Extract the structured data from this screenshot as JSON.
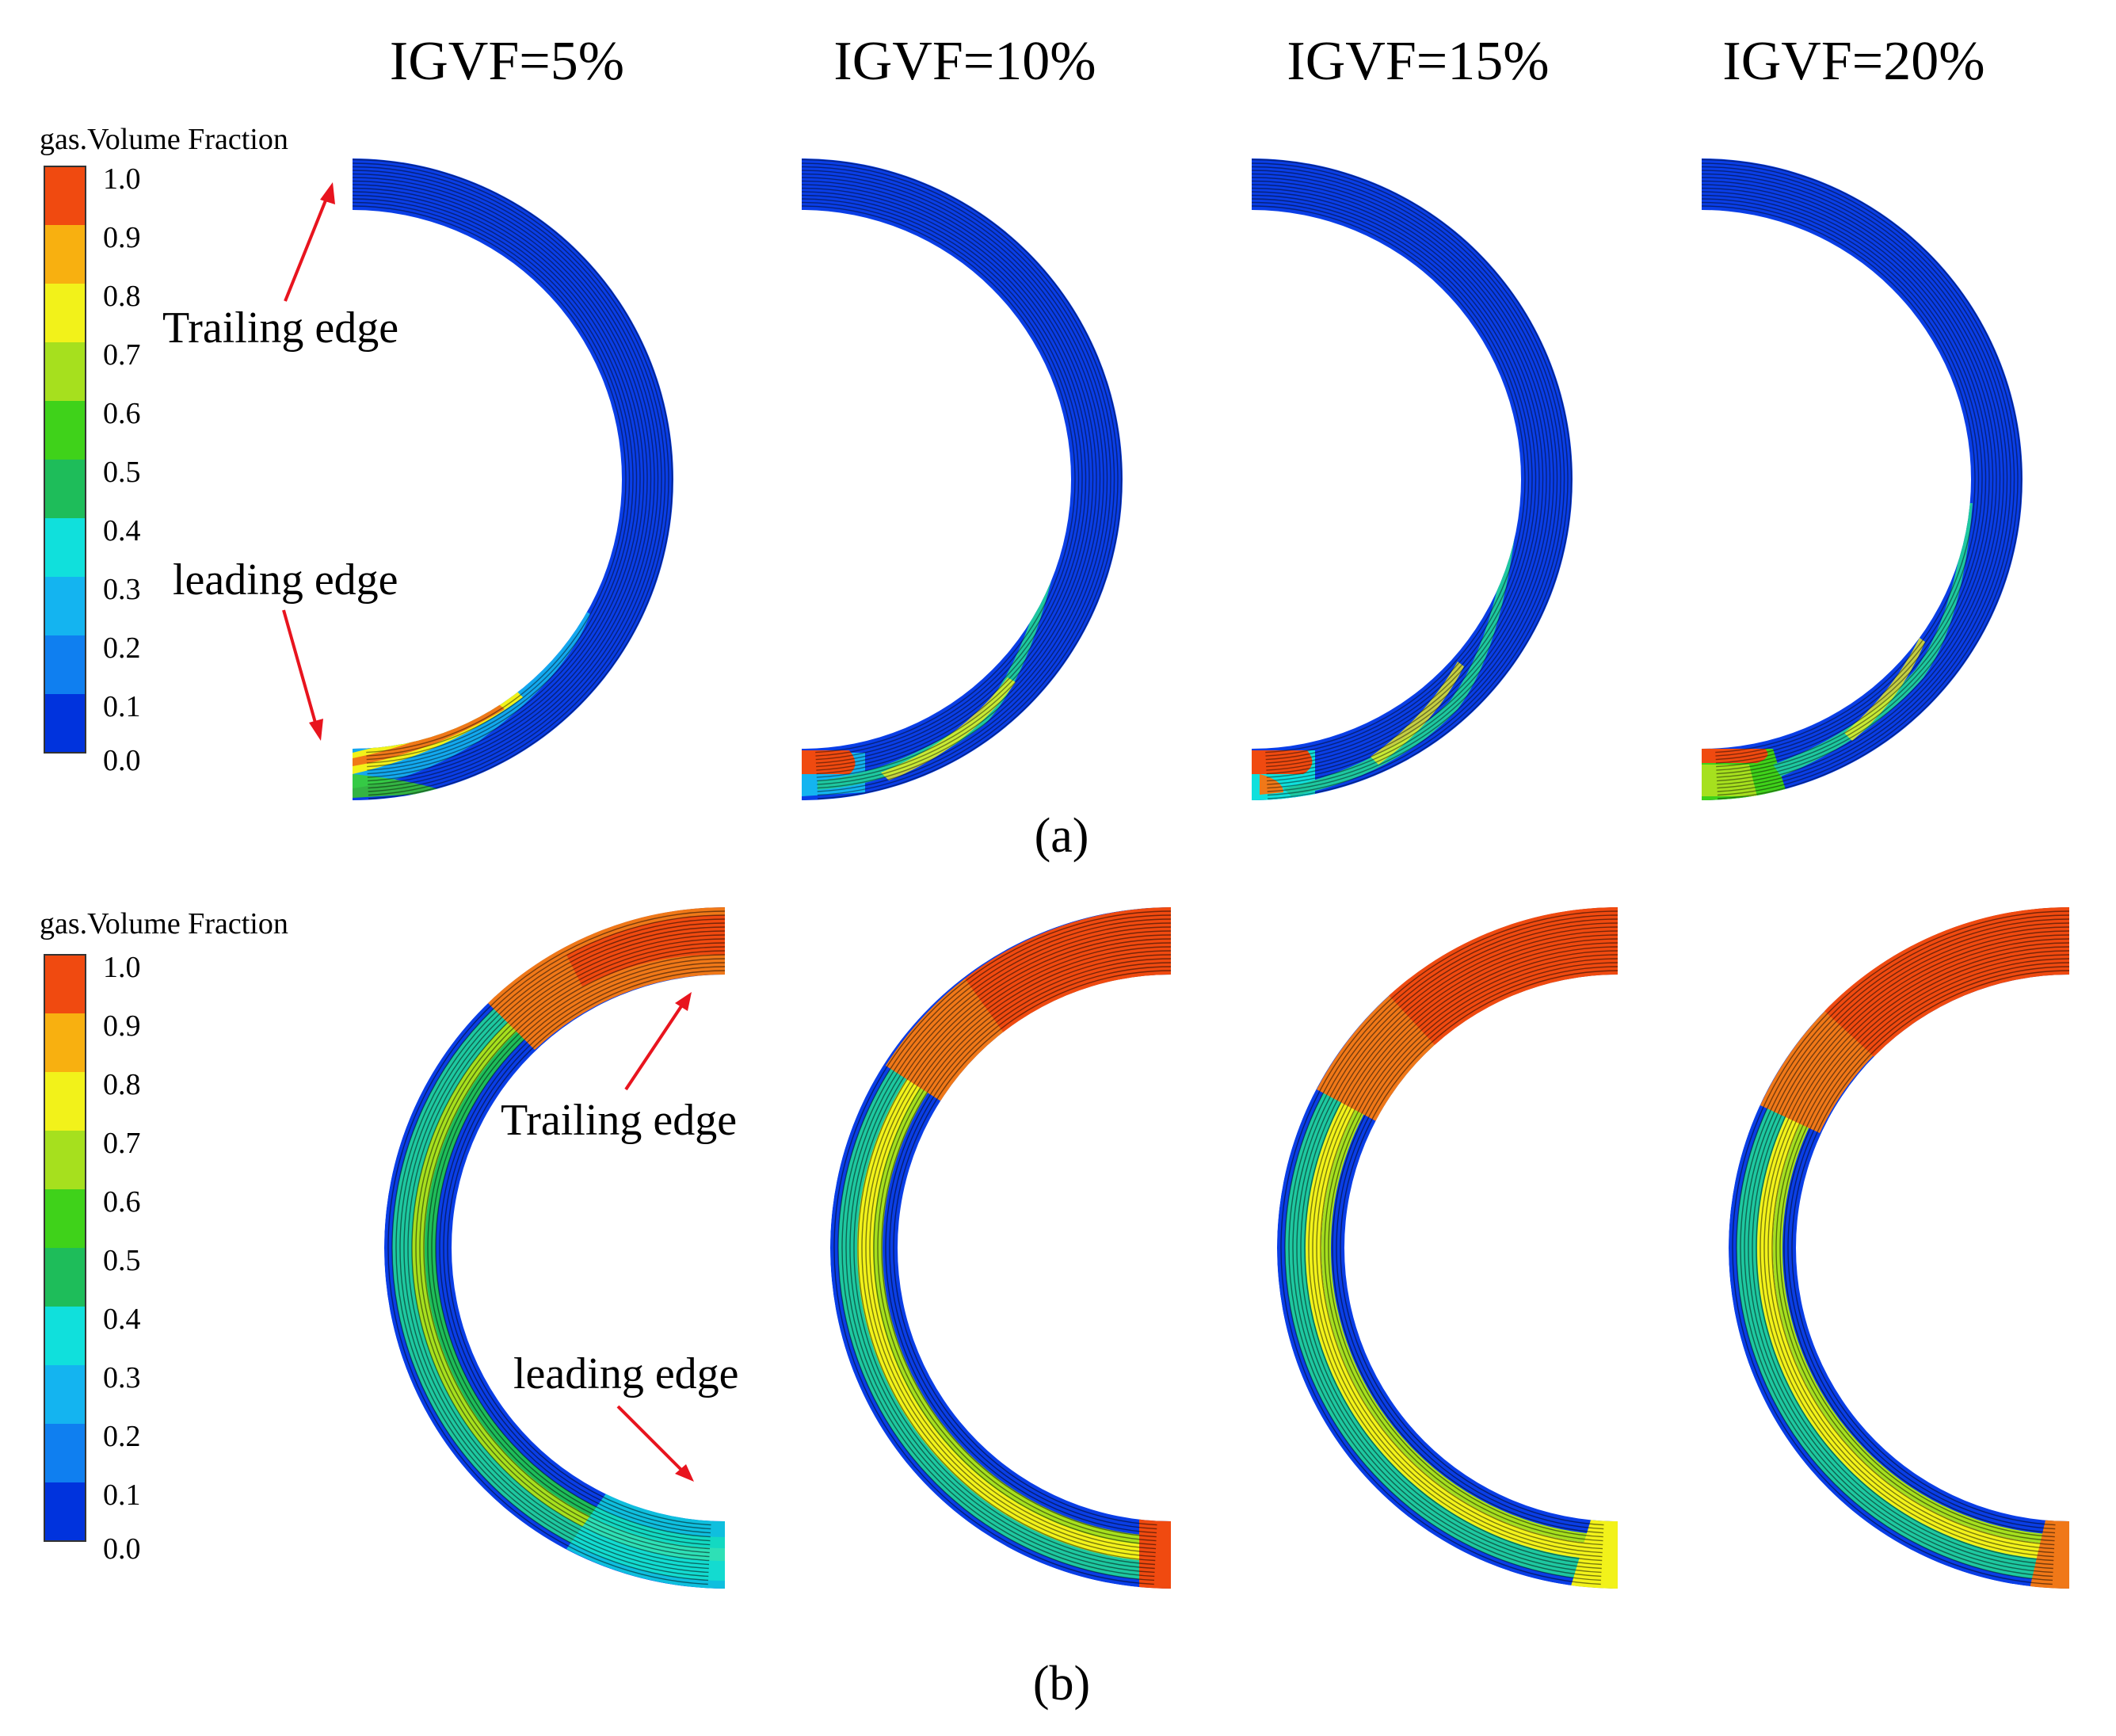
{
  "figure": {
    "panel_labels": [
      "(a)",
      "(b)"
    ],
    "conditions": [
      "IGVF=5%",
      "IGVF=10%",
      "IGVF=15%",
      "IGVF=20%"
    ],
    "legend": {
      "title": "gas.Volume Fraction",
      "ticks": [
        "1.0",
        "0.9",
        "0.8",
        "0.7",
        "0.6",
        "0.5",
        "0.4",
        "0.3",
        "0.2",
        "0.1",
        "0.0"
      ],
      "colors": [
        "#0033dd",
        "#0f7ff0",
        "#14b4f0",
        "#10e0dc",
        "#1ec8a0",
        "#1ebd5a",
        "#3fd21a",
        "#a6e01e",
        "#f2f21a",
        "#f8b010",
        "#f07818",
        "#f04a10"
      ]
    },
    "annotations": {
      "trailing_edge": "Trailing edge",
      "leading_edge": "leading edge"
    },
    "colors": {
      "background": "#0a3ee6",
      "arrow": "#e8141e",
      "high": "#f04a10",
      "mid": "#f2f21a",
      "green": "#2fd23a",
      "cyan": "#14d8e6",
      "light_blue": "#14b4f0"
    }
  }
}
